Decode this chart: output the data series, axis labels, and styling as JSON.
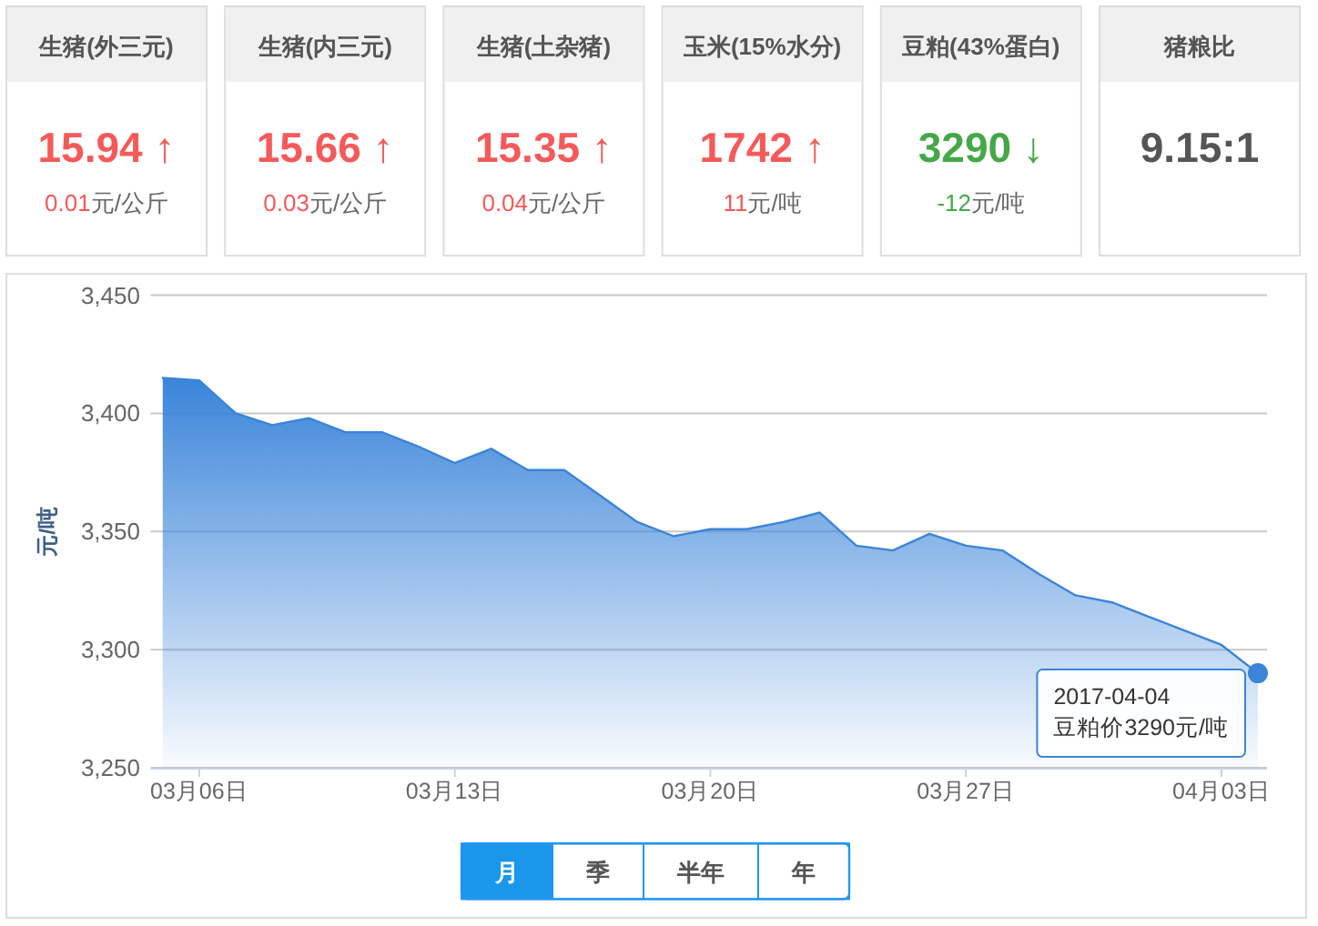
{
  "chart_data": [
    {
      "type": "other",
      "title": "生猪(外三元)",
      "annotations": [
        "15.94 ↑",
        "0.01元/公斤"
      ],
      "color": "#f45a5a"
    },
    {
      "type": "other",
      "title": "生猪(内三元)",
      "annotations": [
        "15.66 ↑",
        "0.03元/公斤"
      ],
      "color": "#f45a5a"
    },
    {
      "type": "other",
      "title": "生猪(土杂猪)",
      "annotations": [
        "15.35 ↑",
        "0.04元/公斤"
      ],
      "color": "#f45a5a"
    },
    {
      "type": "other",
      "title": "玉米(15%水分)",
      "annotations": [
        "1742 ↑",
        "11元/吨"
      ],
      "color": "#f45a5a"
    },
    {
      "type": "other",
      "title": "豆粕(43%蛋白)",
      "annotations": [
        "3290 ↓",
        "-12元/吨"
      ],
      "color": "#45a848"
    },
    {
      "type": "other",
      "title": "猪粮比",
      "annotations": [
        "9.15:1"
      ],
      "color": "#555555"
    },
    {
      "type": "area",
      "ylabel": "元/吨",
      "x": [
        "2017-03-05",
        "2017-03-06",
        "2017-03-07",
        "2017-03-08",
        "2017-03-09",
        "2017-03-10",
        "2017-03-11",
        "2017-03-12",
        "2017-03-13",
        "2017-03-14",
        "2017-03-15",
        "2017-03-16",
        "2017-03-17",
        "2017-03-18",
        "2017-03-19",
        "2017-03-20",
        "2017-03-21",
        "2017-03-22",
        "2017-03-23",
        "2017-03-24",
        "2017-03-25",
        "2017-03-26",
        "2017-03-27",
        "2017-03-28",
        "2017-03-29",
        "2017-03-30",
        "2017-03-31",
        "2017-04-01",
        "2017-04-02",
        "2017-04-03",
        "2017-04-04"
      ],
      "values": [
        3415,
        3414,
        3400,
        3395,
        3398,
        3392,
        3392,
        3386,
        3379,
        3385,
        3376,
        3376,
        3365,
        3354,
        3348,
        3351,
        3351,
        3354,
        3358,
        3344,
        3342,
        3349,
        3344,
        3342,
        3332,
        3323,
        3320,
        3314,
        3308,
        3302,
        3290
      ],
      "color": "#3a84d9",
      "xlim": [
        "2017-03-04T16:00",
        "2017-04-04T06:00"
      ],
      "xticks": [
        {
          "value": "2017-03-06",
          "label": "03月06日"
        },
        {
          "value": "2017-03-13",
          "label": "03月13日"
        },
        {
          "value": "2017-03-20",
          "label": "03月20日"
        },
        {
          "value": "2017-03-27",
          "label": "03月27日"
        },
        {
          "value": "2017-04-03",
          "label": "04月03日"
        }
      ],
      "ylim": [
        3250,
        3450
      ],
      "yticks": [
        {
          "value": 3250,
          "label": "3,250"
        },
        {
          "value": 3300,
          "label": "3,300"
        },
        {
          "value": 3350,
          "label": "3,350"
        },
        {
          "value": 3400,
          "label": "3,400"
        },
        {
          "value": 3450,
          "label": "3,450"
        }
      ],
      "grid": "y",
      "annotations": [
        {
          "text": "2017-04-04\n豆粕价3290元/吨",
          "x": "2017-04-04",
          "y": 3290
        },
        "月",
        "季",
        "半年",
        "年"
      ]
    }
  ]
}
